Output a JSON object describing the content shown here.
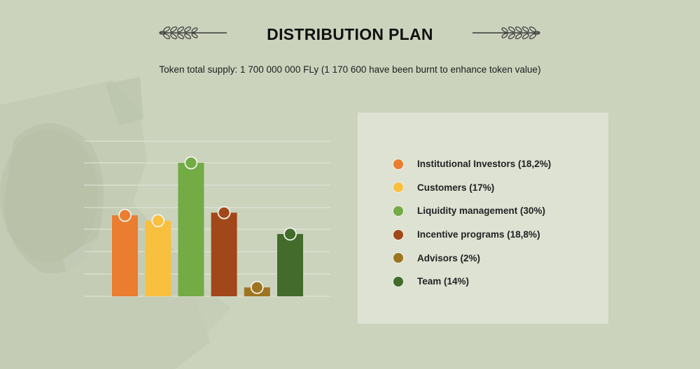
{
  "title": "DISTRIBUTION PLAN",
  "subtitle": "Token total supply: 1 700 000 000 FLy (1 170 600 have been burnt to enhance token value)",
  "colors": {
    "background": "#cbd3bd",
    "panel": "#dde2d3",
    "ornament": "#3a3a3a"
  },
  "icons": {
    "left_ornament": "laurel-branch-icon",
    "right_ornament": "laurel-branch-icon"
  },
  "chart_data": {
    "type": "bar",
    "categories": [
      "Institutional Investors (18,2%)",
      "Customers (17%)",
      "Liquidity management (30%)",
      "Incentive programs (18,8%)",
      "Advisors (2%)",
      "Team (14%)"
    ],
    "values": [
      18.2,
      17,
      30,
      18.8,
      2,
      14
    ],
    "colors": [
      "#ea7d30",
      "#f9bf3f",
      "#73ab45",
      "#a1481a",
      "#9f7421",
      "#426b2c"
    ],
    "ylim": [
      0,
      30
    ],
    "grid": true,
    "legend": "right"
  }
}
